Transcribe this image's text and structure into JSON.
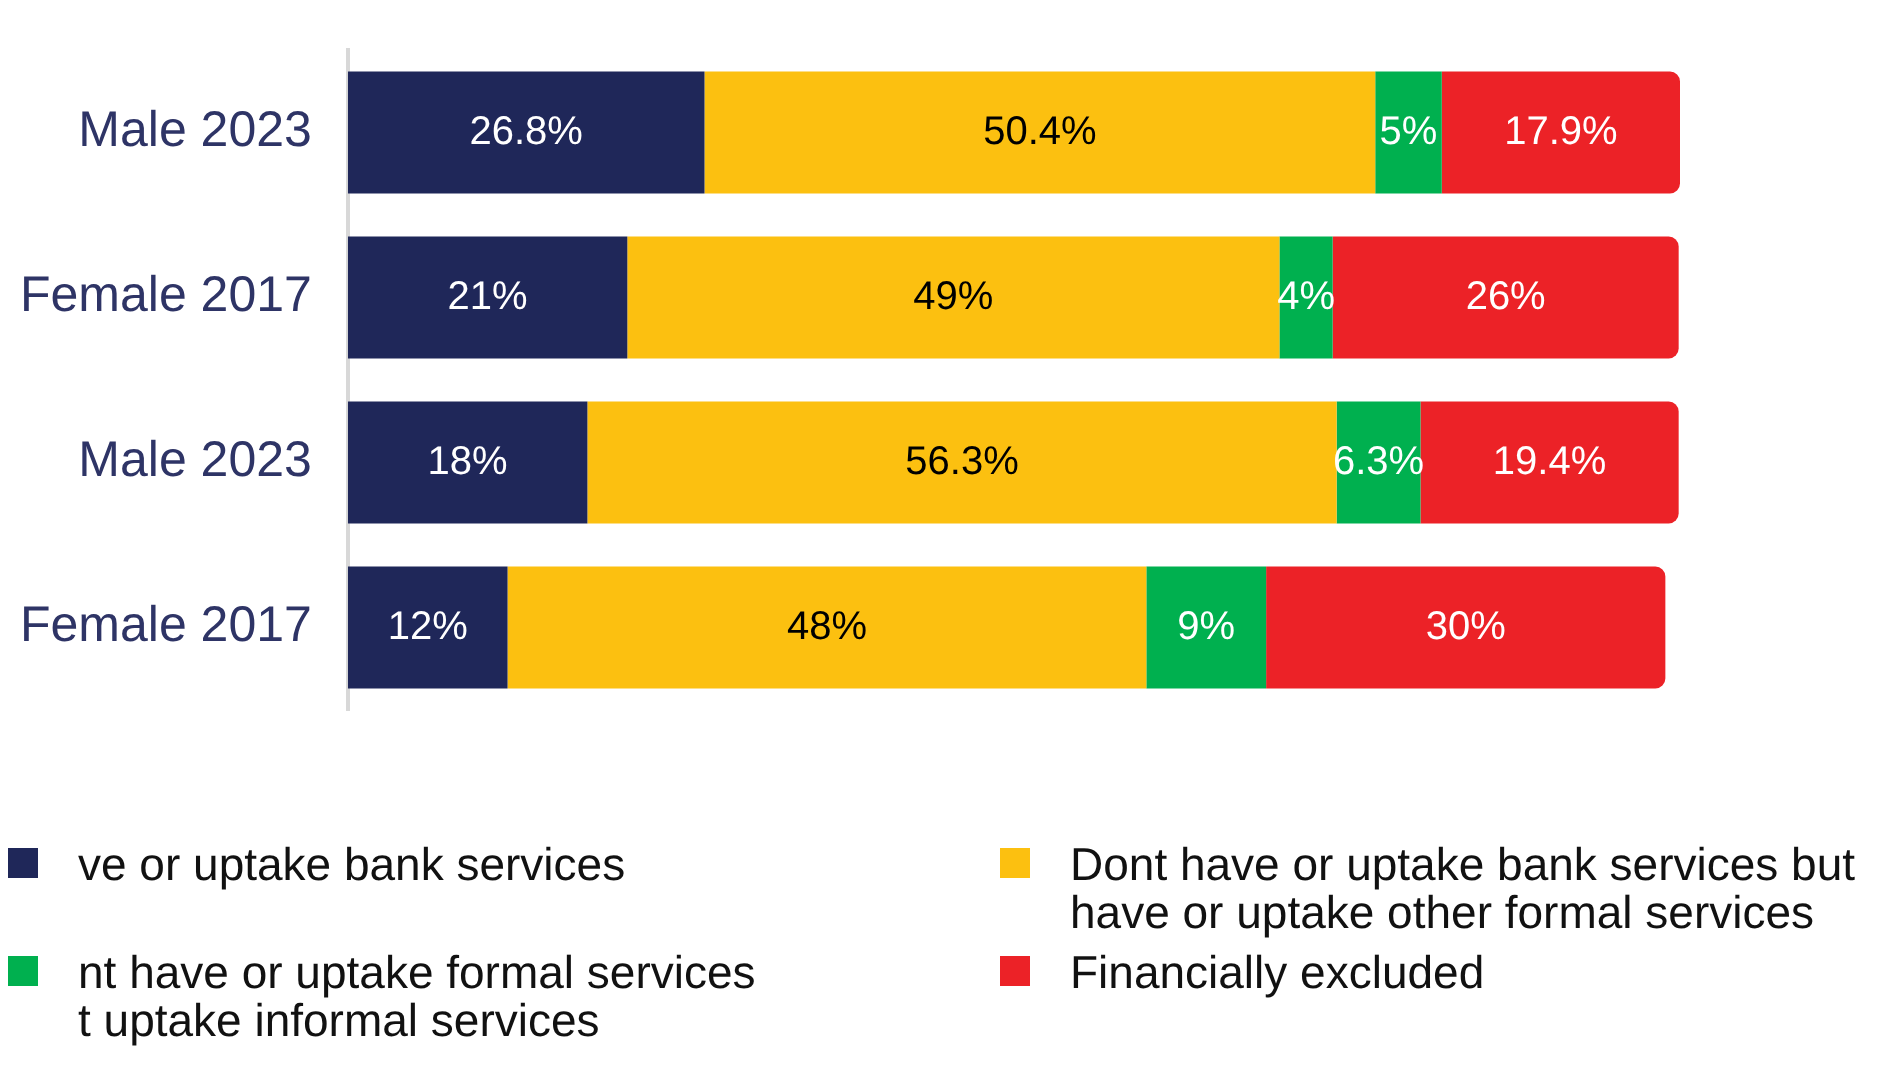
{
  "chart_data": {
    "type": "bar",
    "orientation": "horizontal",
    "stacked": true,
    "categories": [
      "Male 2023",
      "Female 2017",
      "Male 2023",
      "Female 2017"
    ],
    "xlim": [
      0,
      100.1
    ],
    "tick_labels": "y",
    "legend": "bottom",
    "series": [
      {
        "name": "ve or uptake bank services",
        "color": "#1f2759",
        "values": [
          26.8,
          21,
          18,
          12
        ],
        "value_labels": [
          "26.8%",
          "21%",
          "18%",
          "12%"
        ]
      },
      {
        "name": "Dont have or uptake bank services but\nhave or uptake other formal services",
        "color": "#fcc010",
        "values": [
          50.4,
          49,
          56.3,
          48
        ],
        "value_labels": [
          "50.4%",
          "49%",
          "56.3%",
          "48%"
        ]
      },
      {
        "name": "nt have or uptake formal services\nt uptake informal services",
        "color": "#00b04f",
        "values": [
          5,
          4,
          6.3,
          9
        ],
        "value_labels": [
          "5%",
          "4%",
          "6.3%",
          "9%"
        ]
      },
      {
        "name": "Financially excluded",
        "color": "#ec2227",
        "values": [
          17.9,
          26,
          19.4,
          30
        ],
        "value_labels": [
          "17.9%",
          "26%",
          "19.4%",
          "30%"
        ]
      }
    ]
  }
}
